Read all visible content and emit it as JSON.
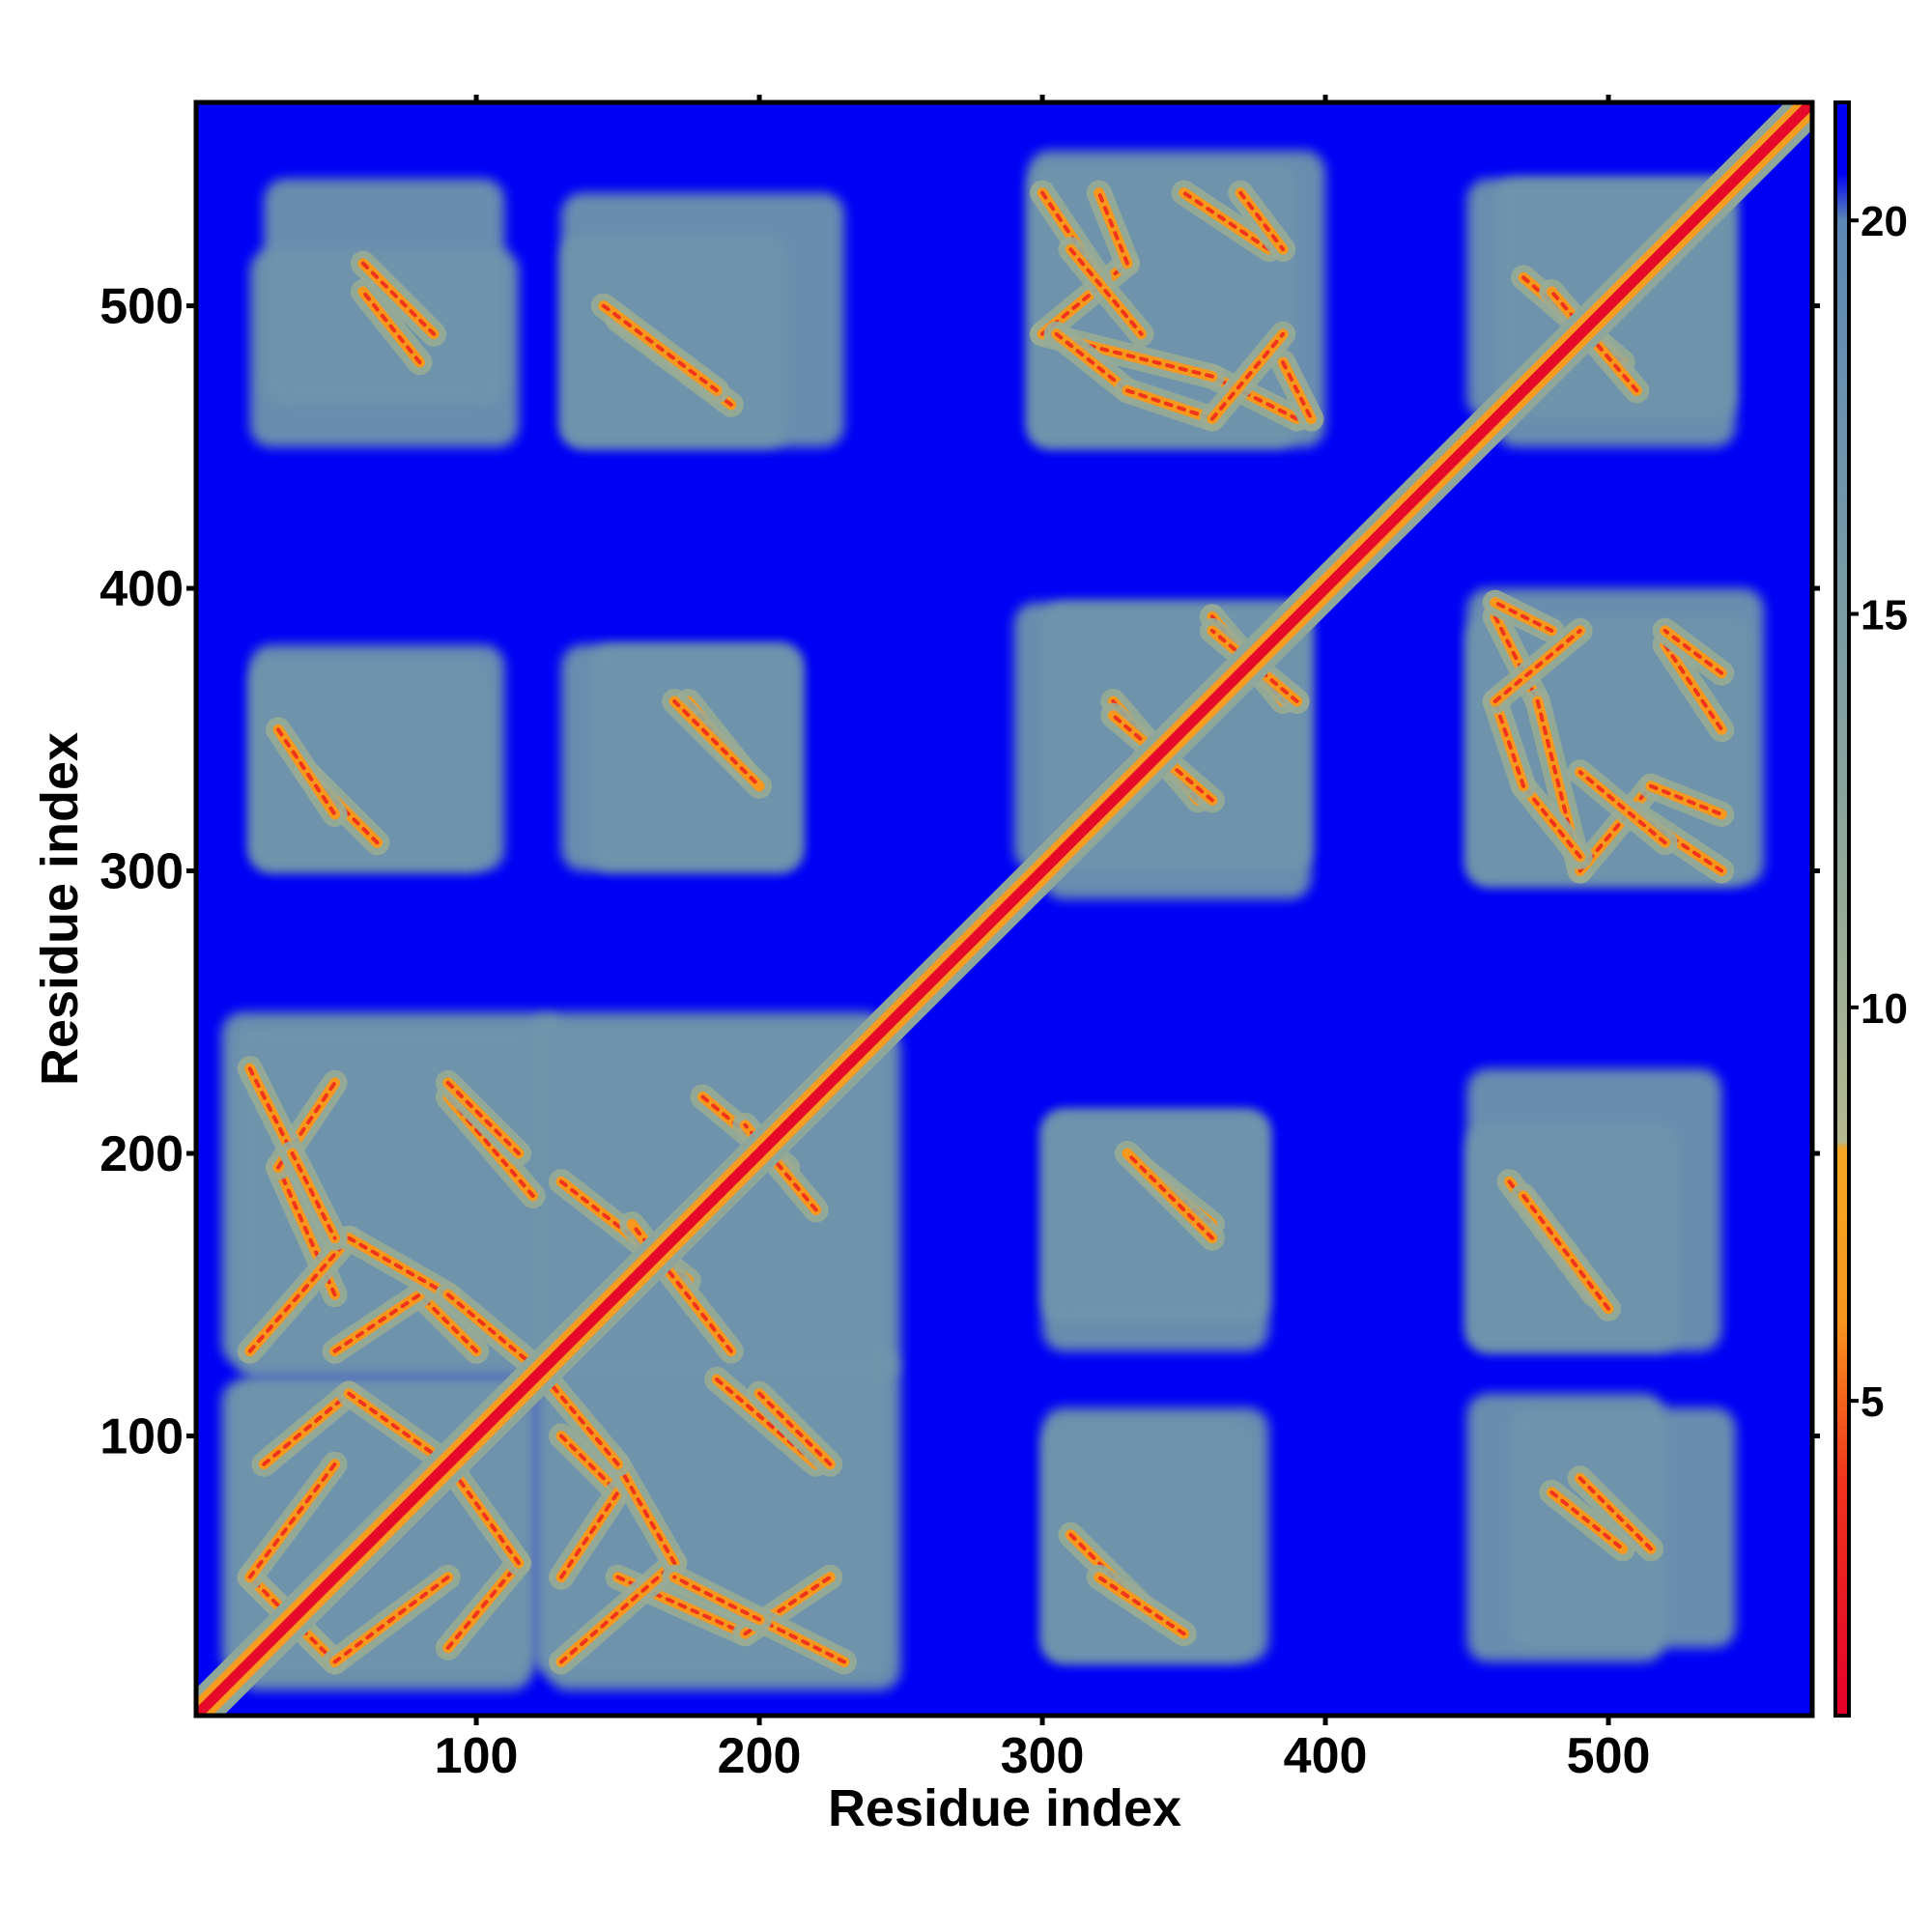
{
  "chart_data": {
    "type": "heatmap",
    "title": "",
    "xlabel": "Residue index",
    "ylabel": "Residue index",
    "n_residues": 572,
    "xlim": [
      1,
      572
    ],
    "ylim": [
      1,
      572
    ],
    "x_ticks": [
      100,
      200,
      300,
      400,
      500
    ],
    "y_ticks": [
      100,
      200,
      300,
      400,
      500
    ],
    "x_tick_labels": [
      "100",
      "200",
      "300",
      "400",
      "500"
    ],
    "y_tick_labels": [
      "100",
      "200",
      "300",
      "400",
      "500"
    ],
    "grid": false,
    "legend": "colorbar-right",
    "colorbar": {
      "range": [
        1,
        21.5
      ],
      "ticks": [
        5,
        10,
        15,
        20
      ],
      "tick_labels": [
        "5",
        "10",
        "15",
        "20"
      ],
      "stops": [
        {
          "value": 1,
          "color": "#e4002b"
        },
        {
          "value": 4,
          "color": "#f0341c"
        },
        {
          "value": 6,
          "color": "#f7941d"
        },
        {
          "value": 8.2,
          "color": "#f5a623"
        },
        {
          "value": 8.3,
          "color": "#b4b890"
        },
        {
          "value": 12,
          "color": "#8ea79a"
        },
        {
          "value": 20,
          "color": "#5c88b5"
        },
        {
          "value": 20.6,
          "color": "#0000f5"
        },
        {
          "value": 21.5,
          "color": "#0000f5"
        }
      ]
    },
    "background_value": 21.5,
    "background_color": "#0000f5",
    "diagonal": {
      "value": 1.5
    },
    "contact_bands": [
      {
        "x": [
          20,
          50
        ],
        "y": [
          50,
          20
        ]
      },
      {
        "x": [
          50,
          90
        ],
        "y": [
          20,
          50
        ]
      },
      {
        "x": [
          25,
          55
        ],
        "y": [
          90,
          115
        ]
      },
      {
        "x": [
          55,
          90
        ],
        "y": [
          115,
          90
        ]
      },
      {
        "x": [
          130,
          150
        ],
        "y": [
          100,
          80
        ]
      },
      {
        "x": [
          130,
          150
        ],
        "y": [
          50,
          80
        ]
      },
      {
        "x": [
          150,
          195
        ],
        "y": [
          50,
          30
        ]
      },
      {
        "x": [
          195,
          225
        ],
        "y": [
          30,
          50
        ]
      },
      {
        "x": [
          185,
          220
        ],
        "y": [
          120,
          90
        ]
      },
      {
        "x": [
          20,
          55
        ],
        "y": [
          130,
          170
        ]
      },
      {
        "x": [
          55,
          90
        ],
        "y": [
          170,
          150
        ]
      },
      {
        "x": [
          90,
          120
        ],
        "y": [
          150,
          125
        ]
      },
      {
        "x": [
          20,
          35
        ],
        "y": [
          230,
          200
        ]
      },
      {
        "x": [
          35,
          50
        ],
        "y": [
          200,
          170
        ]
      },
      {
        "x": [
          90,
          115
        ],
        "y": [
          225,
          200
        ]
      },
      {
        "x": [
          130,
          175
        ],
        "y": [
          190,
          155
        ]
      },
      {
        "x": [
          180,
          210
        ],
        "y": [
          220,
          195
        ]
      },
      {
        "x": [
          335,
          360
        ],
        "y": [
          195,
          175
        ]
      },
      {
        "x": [
          310,
          335
        ],
        "y": [
          65,
          40
        ]
      },
      {
        "x": [
          465,
          495
        ],
        "y": [
          190,
          150
        ]
      },
      {
        "x": [
          480,
          505
        ],
        "y": [
          80,
          60
        ]
      },
      {
        "x": [
          30,
          50
        ],
        "y": [
          350,
          320
        ]
      },
      {
        "x": [
          170,
          200
        ],
        "y": [
          360,
          330
        ]
      },
      {
        "x": [
          325,
          355
        ],
        "y": [
          360,
          325
        ]
      },
      {
        "x": [
          360,
          385
        ],
        "y": [
          390,
          360
        ]
      },
      {
        "x": [
          460,
          475
        ],
        "y": [
          390,
          360
        ]
      },
      {
        "x": [
          475,
          490
        ],
        "y": [
          360,
          300
        ]
      },
      {
        "x": [
          490,
          515
        ],
        "y": [
          300,
          330
        ]
      },
      {
        "x": [
          515,
          540
        ],
        "y": [
          330,
          320
        ]
      },
      {
        "x": [
          520,
          540
        ],
        "y": [
          380,
          350
        ]
      },
      {
        "x": [
          60,
          85
        ],
        "y": [
          515,
          490
        ]
      },
      {
        "x": [
          145,
          185
        ],
        "y": [
          500,
          470
        ]
      },
      {
        "x": [
          300,
          320
        ],
        "y": [
          540,
          510
        ]
      },
      {
        "x": [
          310,
          335
        ],
        "y": [
          520,
          490
        ]
      },
      {
        "x": [
          305,
          330
        ],
        "y": [
          490,
          470
        ]
      },
      {
        "x": [
          330,
          360
        ],
        "y": [
          470,
          460
        ]
      },
      {
        "x": [
          360,
          385
        ],
        "y": [
          460,
          490
        ]
      },
      {
        "x": [
          385,
          395
        ],
        "y": [
          480,
          460
        ]
      },
      {
        "x": [
          370,
          385
        ],
        "y": [
          540,
          520
        ]
      },
      {
        "x": [
          470,
          505
        ],
        "y": [
          510,
          480
        ]
      }
    ],
    "blocks": [
      {
        "x": [
          15,
          120
        ],
        "y": [
          10,
          120
        ]
      },
      {
        "x": [
          125,
          250
        ],
        "y": [
          10,
          130
        ]
      },
      {
        "x": [
          15,
          250
        ],
        "y": [
          120,
          245
        ]
      },
      {
        "x": [
          300,
          375
        ],
        "y": [
          20,
          105
        ]
      },
      {
        "x": [
          300,
          380
        ],
        "y": [
          130,
          215
        ]
      },
      {
        "x": [
          450,
          520
        ],
        "y": [
          20,
          115
        ]
      },
      {
        "x": [
          450,
          525
        ],
        "y": [
          130,
          210
        ]
      },
      {
        "x": [
          20,
          110
        ],
        "y": [
          300,
          380
        ]
      },
      {
        "x": [
          140,
          215
        ],
        "y": [
          300,
          380
        ]
      },
      {
        "x": [
          300,
          395
        ],
        "y": [
          290,
          395
        ]
      },
      {
        "x": [
          450,
          550
        ],
        "y": [
          295,
          390
        ]
      },
      {
        "x": [
          25,
          110
        ],
        "y": [
          465,
          545
        ]
      },
      {
        "x": [
          130,
          230
        ],
        "y": [
          450,
          540
        ]
      },
      {
        "x": [
          295,
          400
        ],
        "y": [
          450,
          555
        ]
      },
      {
        "x": [
          450,
          545
        ],
        "y": [
          460,
          545
        ]
      }
    ]
  }
}
